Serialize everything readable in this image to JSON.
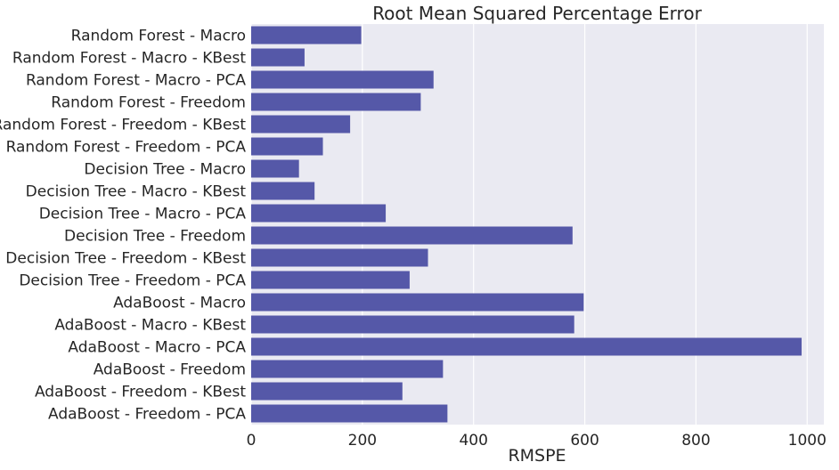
{
  "chart_data": {
    "type": "bar",
    "orientation": "horizontal",
    "title": "Root Mean Squared Percentage Error",
    "xlabel": "RMSPE",
    "ylabel": "",
    "xlim": [
      0,
      1030
    ],
    "xticks": [
      0,
      200,
      400,
      600,
      800,
      1000
    ],
    "grid": true,
    "bar_color": "#5558a8",
    "background_color": "#eaeaf2",
    "categories": [
      "Random Forest - Macro",
      "Random Forest - Macro - KBest",
      "Random Forest - Macro - PCA",
      "Random Forest - Freedom",
      "Random Forest - Freedom - KBest",
      "Random Forest - Freedom - PCA",
      "Decision Tree - Macro",
      "Decision Tree - Macro - KBest",
      "Decision Tree - Macro - PCA",
      "Decision Tree - Freedom",
      "Decision Tree - Freedom - KBest",
      "Decision Tree - Freedom - PCA",
      "AdaBoost - Macro",
      "AdaBoost - Macro - KBest",
      "AdaBoost - Macro - PCA",
      "AdaBoost - Freedom",
      "AdaBoost - Freedom - KBest",
      "AdaBoost - Freedom - PCA"
    ],
    "values": [
      198,
      96,
      328,
      305,
      178,
      129,
      86,
      114,
      242,
      578,
      318,
      285,
      598,
      581,
      990,
      345,
      272,
      353
    ]
  }
}
